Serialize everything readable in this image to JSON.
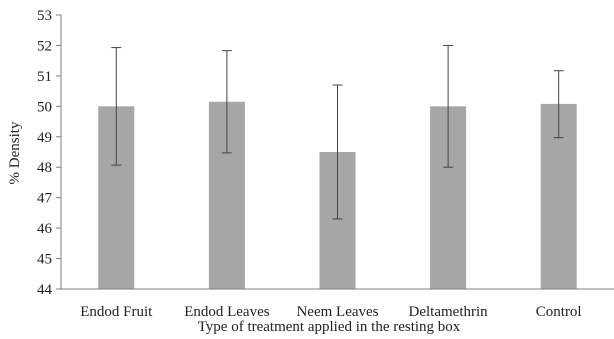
{
  "chart_data": {
    "type": "bar",
    "title": "",
    "xlabel": "Type of treatment applied in the resting box",
    "ylabel": "% Density",
    "ylim": [
      44,
      53
    ],
    "yticks": [
      44,
      45,
      46,
      47,
      48,
      49,
      50,
      51,
      52,
      53
    ],
    "grid": false,
    "categories": [
      "Endod Fruit",
      "Endod Leaves",
      "Neem Leaves",
      "Deltamethrin",
      "Control"
    ],
    "values": [
      50.0,
      50.15,
      48.5,
      50.0,
      50.08
    ],
    "error_low": [
      48.07,
      48.47,
      46.3,
      48.0,
      48.97
    ],
    "error_high": [
      51.93,
      51.83,
      50.7,
      52.0,
      51.17
    ],
    "colors": {
      "bar": "#a6a6a6",
      "axis": "#7f7f7f",
      "error_bar": "#444444"
    }
  }
}
